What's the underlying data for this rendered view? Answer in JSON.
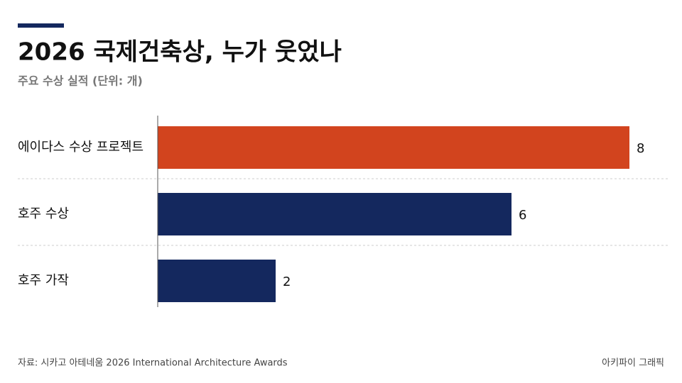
{
  "chart_data": {
    "type": "bar",
    "orientation": "horizontal",
    "title": "2026 국제건축상, 누가 웃었나",
    "subtitle": "주요 수상 실적 (단위: 개)",
    "categories": [
      "에이다스 수상 프로젝트",
      "호주 수상",
      "호주 가작"
    ],
    "values": [
      8,
      6,
      2
    ],
    "colors": [
      "#d2441e",
      "#14285e",
      "#14285e"
    ],
    "xlim": [
      0,
      8
    ],
    "source": "자료: 시카고 아테네움 2026 International Architecture Awards",
    "credit": "아키파이 그래픽"
  }
}
